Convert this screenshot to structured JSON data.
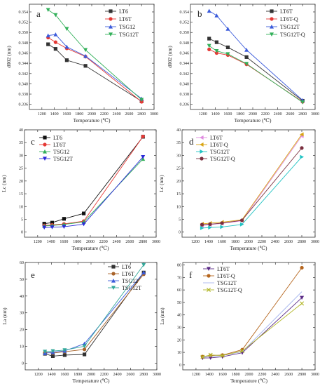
{
  "figure": {
    "background": "#ffffff",
    "axis_color": "#333333"
  },
  "chart_data": [
    {
      "id": "a",
      "type": "line",
      "panel_label": "a",
      "xlabel": "Temperature (℃)",
      "ylabel": "d002 (nm)",
      "xlim": [
        1000,
        3000
      ],
      "ylim": [
        0.335,
        0.3555
      ],
      "xticks": [
        1200,
        1400,
        1600,
        1800,
        2000,
        2200,
        2400,
        2600,
        2800,
        3000
      ],
      "yticks": [
        0.336,
        0.338,
        0.34,
        0.342,
        0.344,
        0.346,
        0.348,
        0.35,
        0.352,
        0.354
      ],
      "tick_decimals": 3,
      "grid": false,
      "legend_position": "top-right",
      "x": [
        1300,
        1420,
        1600,
        1900,
        2800
      ],
      "series": [
        {
          "name": "LT6",
          "color": "#333333",
          "marker": "square",
          "values": [
            0.3477,
            0.3468,
            0.3446,
            0.3435,
            0.3366
          ]
        },
        {
          "name": "LT6T",
          "color": "#e53935",
          "marker": "circle",
          "values": [
            0.349,
            0.3481,
            0.3469,
            0.3453,
            0.3365
          ]
        },
        {
          "name": "TSG12",
          "color": "#3b5bdb",
          "marker": "triangle",
          "values": [
            0.3494,
            0.3496,
            0.3472,
            0.3454,
            0.3371
          ]
        },
        {
          "name": "TSG12T",
          "color": "#33b05a",
          "marker": "triangle-down",
          "values": [
            0.3544,
            0.3534,
            0.3507,
            0.3466,
            0.3369
          ]
        }
      ]
    },
    {
      "id": "b",
      "type": "line",
      "panel_label": "b",
      "xlabel": "Temperature (℃)",
      "ylabel": "d002 (nm)",
      "xlim": [
        1000,
        3000
      ],
      "ylim": [
        0.335,
        0.3555
      ],
      "xticks": [
        1200,
        1400,
        1600,
        1800,
        2000,
        2200,
        2400,
        2600,
        2800,
        3000
      ],
      "yticks": [
        0.336,
        0.338,
        0.34,
        0.342,
        0.344,
        0.346,
        0.348,
        0.35,
        0.352,
        0.354
      ],
      "tick_decimals": 3,
      "grid": false,
      "legend_position": "top-right",
      "x": [
        1300,
        1420,
        1600,
        1900,
        2800
      ],
      "series": [
        {
          "name": "LT6T",
          "color": "#333333",
          "marker": "square",
          "values": [
            0.3488,
            0.3481,
            0.3471,
            0.3452,
            0.3367
          ]
        },
        {
          "name": "LT6T-Q",
          "color": "#e53935",
          "marker": "circle",
          "values": [
            0.3467,
            0.346,
            0.3456,
            0.3438,
            0.3365
          ]
        },
        {
          "name": "TSG12T",
          "color": "#3b5bdb",
          "marker": "triangle",
          "values": [
            0.3542,
            0.3533,
            0.3507,
            0.3466,
            0.3368
          ]
        },
        {
          "name": "TSG12T-Q",
          "color": "#33b05a",
          "marker": "triangle-down",
          "values": [
            0.3474,
            0.3464,
            0.3458,
            0.3439,
            0.3364
          ]
        }
      ]
    },
    {
      "id": "c",
      "type": "line",
      "panel_label": "c",
      "xlabel": "Temperature (℃)",
      "ylabel": "Lc (nm)",
      "xlim": [
        1000,
        3000
      ],
      "ylim": [
        -2,
        40
      ],
      "xticks": [
        1200,
        1400,
        1600,
        1800,
        2000,
        2200,
        2400,
        2600,
        2800,
        3000
      ],
      "yticks": [
        0,
        5,
        10,
        15,
        20,
        25,
        30,
        35,
        40
      ],
      "tick_decimals": 0,
      "grid": false,
      "legend_position": "top-left",
      "x": [
        1300,
        1420,
        1600,
        1900,
        2800
      ],
      "series": [
        {
          "name": "LT6",
          "color": "#111111",
          "marker": "square",
          "values": [
            3.3,
            3.7,
            5.2,
            7.3,
            37.3
          ]
        },
        {
          "name": "LT6T",
          "color": "#e53935",
          "marker": "circle",
          "values": [
            2.6,
            2.8,
            3.2,
            4.3,
            37.4
          ]
        },
        {
          "name": "TSG12",
          "color": "#33b05a",
          "marker": "triangle",
          "values": [
            2.4,
            2.6,
            3.0,
            4.0,
            28.6
          ]
        },
        {
          "name": "TSG12T",
          "color": "#2a2ad8",
          "marker": "triangle-down",
          "values": [
            1.8,
            1.9,
            2.1,
            3.1,
            29.4
          ]
        }
      ]
    },
    {
      "id": "d",
      "type": "line",
      "panel_label": "d",
      "xlabel": "Temperature (℃)",
      "ylabel": "Lc (nm)",
      "xlim": [
        1000,
        3000
      ],
      "ylim": [
        -2,
        40
      ],
      "xticks": [
        1200,
        1400,
        1600,
        1800,
        2000,
        2200,
        2400,
        2600,
        2800,
        3000
      ],
      "yticks": [
        0,
        5,
        10,
        15,
        20,
        25,
        30,
        35,
        40
      ],
      "tick_decimals": 0,
      "grid": false,
      "legend_position": "top-left",
      "x": [
        1300,
        1420,
        1600,
        1900,
        2800
      ],
      "series": [
        {
          "name": "LT6T",
          "color": "#e08be0",
          "marker": "triangle-left",
          "values": [
            2.6,
            2.9,
            3.4,
            4.4,
            37.6
          ]
        },
        {
          "name": "LT6T-Q",
          "color": "#d9a514",
          "marker": "triangle-left",
          "values": [
            3.2,
            3.5,
            3.9,
            4.8,
            38.2
          ]
        },
        {
          "name": "TSG12T",
          "color": "#22c3c3",
          "marker": "triangle-right",
          "values": [
            1.6,
            1.8,
            2.0,
            3.0,
            29.4
          ]
        },
        {
          "name": "TSG12T-Q",
          "color": "#7a2f3f",
          "marker": "circle",
          "values": [
            2.9,
            3.1,
            3.5,
            4.6,
            32.9
          ]
        }
      ]
    },
    {
      "id": "e",
      "type": "line",
      "panel_label": "e",
      "xlabel": "Temperature (℃)",
      "ylabel": "La (nm)",
      "xlim": [
        1000,
        3000
      ],
      "ylim": [
        -4,
        60
      ],
      "xticks": [
        1200,
        1400,
        1600,
        1800,
        2000,
        2200,
        2400,
        2600,
        2800,
        3000
      ],
      "yticks": [
        0,
        10,
        20,
        30,
        40,
        50,
        60
      ],
      "tick_decimals": 0,
      "grid": false,
      "legend_position": "top-right",
      "x": [
        1300,
        1420,
        1600,
        1900,
        2800
      ],
      "series": [
        {
          "name": "LT6",
          "color": "#333333",
          "marker": "square",
          "values": [
            5.6,
            4.2,
            4.8,
            5.2,
            54.0
          ]
        },
        {
          "name": "LT6T",
          "color": "#a8632a",
          "marker": "circle",
          "values": [
            6.4,
            6.0,
            6.8,
            8.2,
            53.0
          ]
        },
        {
          "name": "TSG12",
          "color": "#3b5bdb",
          "marker": "triangle",
          "values": [
            5.9,
            6.5,
            7.3,
            11.6,
            54.0
          ]
        },
        {
          "name": "TSG12T",
          "color": "#33a89a",
          "marker": "triangle-down",
          "values": [
            6.9,
            7.2,
            7.8,
            10.1,
            58.6
          ]
        }
      ]
    },
    {
      "id": "f",
      "type": "line",
      "panel_label": "f",
      "xlabel": "Temperature (℃)",
      "ylabel": "La (nm)",
      "xlim": [
        1000,
        3000
      ],
      "ylim": [
        -4,
        82
      ],
      "xticks": [
        1200,
        1400,
        1600,
        1800,
        2000,
        2200,
        2400,
        2600,
        2800,
        3000
      ],
      "yticks": [
        0,
        10,
        20,
        30,
        40,
        50,
        60,
        70,
        80
      ],
      "tick_decimals": 0,
      "grid": false,
      "legend_position": "top-left",
      "x": [
        1300,
        1420,
        1600,
        1900,
        2800
      ],
      "series": [
        {
          "name": "LT6T",
          "color": "#5a2a86",
          "marker": "triangle-down",
          "values": [
            5.5,
            5.6,
            6.5,
            9.7,
            53.8
          ]
        },
        {
          "name": "LT6T-Q",
          "color": "#b5651d",
          "marker": "circle",
          "values": [
            6.6,
            7.5,
            7.8,
            12.2,
            77.8
          ]
        },
        {
          "name": "TSG12T",
          "color": "#a7b7ef",
          "marker": "none",
          "values": [
            5.9,
            6.8,
            7.5,
            10.6,
            58.6
          ]
        },
        {
          "name": "TSG12T-Q",
          "color": "#b4b82c",
          "marker": "cross",
          "values": [
            6.4,
            8.0,
            7.4,
            11.2,
            49.2
          ]
        }
      ]
    }
  ]
}
